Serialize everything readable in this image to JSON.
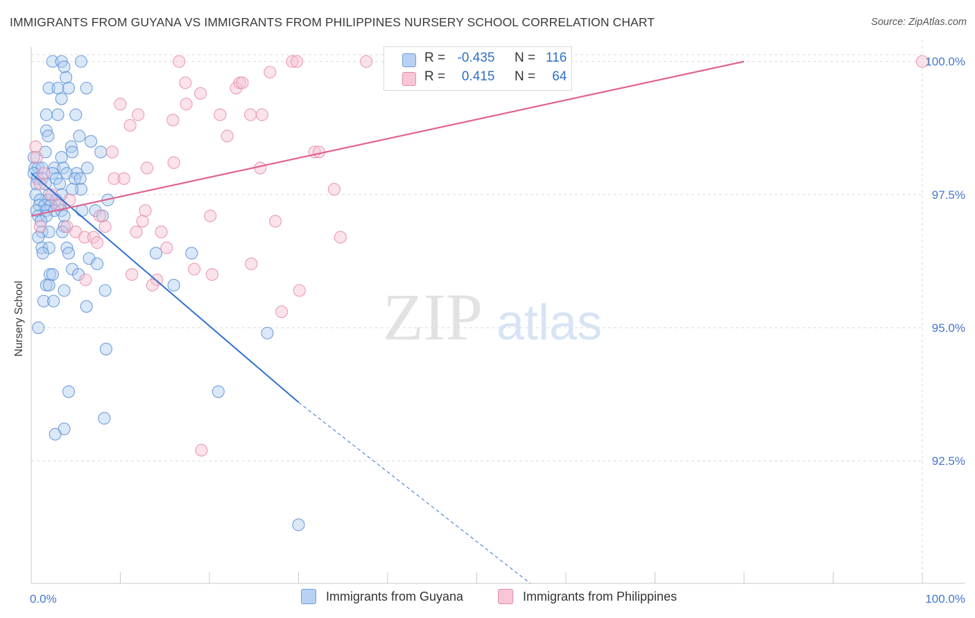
{
  "header": {
    "title": "IMMIGRANTS FROM GUYANA VS IMMIGRANTS FROM PHILIPPINES NURSERY SCHOOL CORRELATION CHART",
    "source": "Source: ZipAtlas.com"
  },
  "watermark": {
    "zip": "ZIP",
    "atlas": "atlas"
  },
  "legend_top": {
    "rows": [
      {
        "r_label": "R =",
        "r_value": "-0.435",
        "n_label": "N =",
        "n_value": "116"
      },
      {
        "r_label": "R =",
        "r_value": "0.415",
        "n_label": "N =",
        "n_value": "64"
      }
    ]
  },
  "colors": {
    "blue_fill": "#aecbf0",
    "blue_stroke": "#5b8fd6",
    "blue_line": "#2f6fd0",
    "pink_fill": "#f6c1d2",
    "pink_stroke": "#e88aa8",
    "pink_line": "#e0628e",
    "tick_label": "#4477cc",
    "grid": "#d9d9d9"
  },
  "chart_data": {
    "type": "scatter",
    "title": "IMMIGRANTS FROM GUYANA VS IMMIGRANTS FROM PHILIPPINES NURSERY SCHOOL CORRELATION CHART",
    "xlabel": "",
    "ylabel": "Nursery School",
    "xlim": [
      0,
      100
    ],
    "ylim": [
      90.2,
      100.4
    ],
    "x_tick_labels": [
      "0.0%",
      "100.0%"
    ],
    "y_ticks": [
      92.5,
      95.0,
      97.5,
      100.0
    ],
    "y_tick_labels": [
      "92.5%",
      "95.0%",
      "97.5%",
      "100.0%"
    ],
    "grid": true,
    "legend_position": "bottom",
    "series": [
      {
        "name": "Immigrants from Guyana",
        "color": "#5b8fd6",
        "trend": {
          "x": [
            0,
            30
          ],
          "y": [
            97.9,
            93.6
          ],
          "dashed_to": {
            "x": [
              30,
              56
            ],
            "y": [
              93.6,
              90.2
            ]
          }
        },
        "points": [
          [
            2.4,
            100.0
          ],
          [
            3.4,
            100.0
          ],
          [
            5.6,
            100.0
          ],
          [
            3.7,
            99.9
          ],
          [
            3.9,
            99.7
          ],
          [
            2.0,
            99.5
          ],
          [
            3.0,
            99.5
          ],
          [
            4.2,
            99.5
          ],
          [
            6.2,
            99.5
          ],
          [
            3.4,
            99.3
          ],
          [
            1.7,
            99.0
          ],
          [
            3.0,
            99.0
          ],
          [
            5.0,
            99.0
          ],
          [
            1.7,
            98.7
          ],
          [
            1.9,
            98.6
          ],
          [
            5.4,
            98.6
          ],
          [
            6.7,
            98.5
          ],
          [
            4.5,
            98.4
          ],
          [
            1.6,
            98.3
          ],
          [
            4.6,
            98.3
          ],
          [
            7.8,
            98.3
          ],
          [
            0.3,
            98.2
          ],
          [
            3.4,
            98.2
          ],
          [
            0.4,
            98.0
          ],
          [
            0.8,
            98.0
          ],
          [
            1.2,
            98.0
          ],
          [
            2.6,
            98.0
          ],
          [
            3.6,
            98.0
          ],
          [
            6.3,
            98.0
          ],
          [
            0.3,
            97.9
          ],
          [
            2.4,
            97.9
          ],
          [
            4.0,
            97.9
          ],
          [
            5.1,
            97.9
          ],
          [
            0.7,
            97.8
          ],
          [
            1.2,
            97.8
          ],
          [
            2.8,
            97.8
          ],
          [
            4.9,
            97.8
          ],
          [
            5.5,
            97.8
          ],
          [
            0.6,
            97.7
          ],
          [
            1.6,
            97.7
          ],
          [
            3.2,
            97.7
          ],
          [
            5.6,
            97.6
          ],
          [
            4.6,
            97.6
          ],
          [
            0.5,
            97.5
          ],
          [
            2.0,
            97.5
          ],
          [
            3.4,
            97.5
          ],
          [
            1.0,
            97.4
          ],
          [
            1.9,
            97.4
          ],
          [
            2.8,
            97.4
          ],
          [
            8.6,
            97.4
          ],
          [
            0.9,
            97.3
          ],
          [
            1.5,
            97.3
          ],
          [
            2.2,
            97.3
          ],
          [
            3.2,
            97.3
          ],
          [
            0.6,
            97.2
          ],
          [
            1.7,
            97.2
          ],
          [
            2.6,
            97.2
          ],
          [
            3.4,
            97.2
          ],
          [
            5.7,
            97.2
          ],
          [
            7.2,
            97.2
          ],
          [
            0.8,
            97.1
          ],
          [
            1.7,
            97.1
          ],
          [
            3.7,
            97.1
          ],
          [
            8.0,
            97.1
          ],
          [
            1.1,
            97.0
          ],
          [
            3.7,
            96.9
          ],
          [
            1.2,
            96.8
          ],
          [
            2.0,
            96.8
          ],
          [
            0.8,
            96.7
          ],
          [
            3.5,
            96.8
          ],
          [
            1.2,
            96.5
          ],
          [
            2.0,
            96.5
          ],
          [
            4.0,
            96.5
          ],
          [
            4.2,
            96.4
          ],
          [
            1.3,
            96.4
          ],
          [
            14.0,
            96.4
          ],
          [
            18.0,
            96.4
          ],
          [
            6.5,
            96.3
          ],
          [
            7.4,
            96.2
          ],
          [
            4.6,
            96.1
          ],
          [
            2.1,
            96.0
          ],
          [
            2.4,
            96.0
          ],
          [
            5.3,
            96.0
          ],
          [
            1.7,
            95.8
          ],
          [
            2.0,
            95.8
          ],
          [
            3.7,
            95.7
          ],
          [
            8.3,
            95.7
          ],
          [
            1.4,
            95.5
          ],
          [
            2.5,
            95.5
          ],
          [
            6.2,
            95.4
          ],
          [
            16.0,
            95.8
          ],
          [
            0.8,
            95.0
          ],
          [
            26.5,
            94.9
          ],
          [
            8.4,
            94.6
          ],
          [
            4.2,
            93.8
          ],
          [
            21.0,
            93.8
          ],
          [
            8.2,
            93.3
          ],
          [
            3.7,
            93.1
          ],
          [
            2.7,
            93.0
          ],
          [
            30.0,
            91.3
          ]
        ]
      },
      {
        "name": "Immigrants from Philippines",
        "color": "#e88aa8",
        "trend": {
          "x": [
            0,
            80
          ],
          "y": [
            97.1,
            100.0
          ]
        },
        "points": [
          [
            16.6,
            100.0
          ],
          [
            29.3,
            100.0
          ],
          [
            29.8,
            100.0
          ],
          [
            37.6,
            100.0
          ],
          [
            42.5,
            100.0
          ],
          [
            46.0,
            100.0
          ],
          [
            100.0,
            100.0
          ],
          [
            26.8,
            99.8
          ],
          [
            17.3,
            99.6
          ],
          [
            23.0,
            99.5
          ],
          [
            23.4,
            99.6
          ],
          [
            23.7,
            99.6
          ],
          [
            19.0,
            99.4
          ],
          [
            10.0,
            99.2
          ],
          [
            17.4,
            99.2
          ],
          [
            12.0,
            99.0
          ],
          [
            21.2,
            99.0
          ],
          [
            24.6,
            99.0
          ],
          [
            25.9,
            99.0
          ],
          [
            15.9,
            98.9
          ],
          [
            11.1,
            98.8
          ],
          [
            22.0,
            98.6
          ],
          [
            0.5,
            98.4
          ],
          [
            9.1,
            98.3
          ],
          [
            31.8,
            98.3
          ],
          [
            32.3,
            98.3
          ],
          [
            16.0,
            98.1
          ],
          [
            13.0,
            98.0
          ],
          [
            25.7,
            98.0
          ],
          [
            0.6,
            98.2
          ],
          [
            1.4,
            97.9
          ],
          [
            9.3,
            97.8
          ],
          [
            10.4,
            97.8
          ],
          [
            34.0,
            97.6
          ],
          [
            1.0,
            97.7
          ],
          [
            4.3,
            97.4
          ],
          [
            3.0,
            97.3
          ],
          [
            12.8,
            97.2
          ],
          [
            7.7,
            97.1
          ],
          [
            20.1,
            97.1
          ],
          [
            27.4,
            97.0
          ],
          [
            12.5,
            97.0
          ],
          [
            1.0,
            96.9
          ],
          [
            4.0,
            96.9
          ],
          [
            8.3,
            96.9
          ],
          [
            5.0,
            96.8
          ],
          [
            11.8,
            96.8
          ],
          [
            14.6,
            96.8
          ],
          [
            6.0,
            96.7
          ],
          [
            7.0,
            96.7
          ],
          [
            34.7,
            96.7
          ],
          [
            7.4,
            96.6
          ],
          [
            15.2,
            96.5
          ],
          [
            24.7,
            96.2
          ],
          [
            18.3,
            96.1
          ],
          [
            11.3,
            96.0
          ],
          [
            20.3,
            96.0
          ],
          [
            14.1,
            95.9
          ],
          [
            13.6,
            95.8
          ],
          [
            6.1,
            95.9
          ],
          [
            30.1,
            95.7
          ],
          [
            28.1,
            95.3
          ],
          [
            19.1,
            92.7
          ],
          [
            2.3,
            97.5
          ]
        ]
      }
    ]
  },
  "legend_bottom": {
    "items": [
      "Immigrants from Guyana",
      "Immigrants from Philippines"
    ]
  }
}
